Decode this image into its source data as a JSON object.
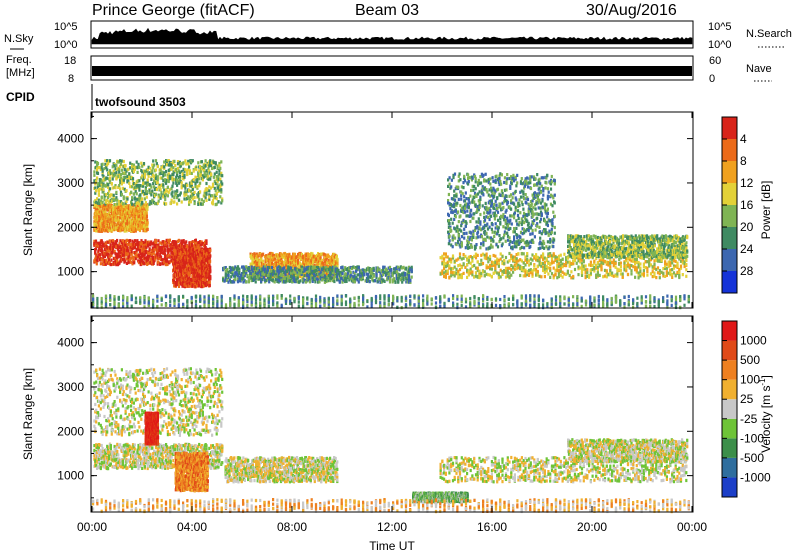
{
  "header": {
    "station": "Prince George (fitACF)",
    "beam": "Beam 03",
    "date": "30/Aug/2016"
  },
  "side_labels": {
    "nsky": "N.Sky",
    "freq": "Freq.",
    "mhz": "[MHz]",
    "cpid": "CPID",
    "nsearch": "N.Search",
    "nave": "Nave"
  },
  "cpid_text": "twofsound 3503",
  "noise_ticks": {
    "left_top": "10^5",
    "left_bottom": "10^0",
    "right_top": "10^5",
    "right_bottom": "10^0"
  },
  "freq_ticks": {
    "left_top": "18",
    "left_bottom": "8",
    "right_top": "60",
    "right_bottom": "0"
  },
  "chart_data": [
    {
      "type": "heatmap",
      "title": "",
      "xlabel": "",
      "ylabel": "Slant Range [km]",
      "x_range": [
        "00:00",
        "24:00"
      ],
      "ylim": [
        180,
        4600
      ],
      "yticks": [
        "1000",
        "2000",
        "3000",
        "4000"
      ],
      "colorbar": {
        "label": "Power [dB]",
        "ticks": [
          "4",
          "8",
          "12",
          "16",
          "20",
          "24",
          "28"
        ],
        "colors": [
          "#1533d8",
          "#3c67b0",
          "#3f8a62",
          "#7fb454",
          "#e3d138",
          "#f0a11f",
          "#eb6a19",
          "#d8241a"
        ]
      },
      "echo_bands": [
        {
          "t0": 0.05,
          "t1": 4.6,
          "r0": 1150,
          "r1": 1700,
          "level": 7
        },
        {
          "t0": 0.05,
          "t1": 2.2,
          "r0": 1900,
          "r1": 2500,
          "level": 5
        },
        {
          "t0": 0.05,
          "t1": 5.2,
          "r0": 2500,
          "r1": 3500,
          "level": 3
        },
        {
          "t0": 3.2,
          "t1": 4.7,
          "r0": 650,
          "r1": 1500,
          "level": 7
        },
        {
          "t0": 6.3,
          "t1": 9.8,
          "r0": 850,
          "r1": 1400,
          "level": 5
        },
        {
          "t0": 5.2,
          "t1": 12.8,
          "r0": 750,
          "r1": 1100,
          "level": 2
        },
        {
          "t0": 13.9,
          "t1": 23.8,
          "r0": 850,
          "r1": 1400,
          "level": 4
        },
        {
          "t0": 19.0,
          "t1": 23.8,
          "r0": 1300,
          "r1": 1800,
          "level": 3
        },
        {
          "t0": 14.2,
          "t1": 18.5,
          "r0": 1500,
          "r1": 3200,
          "level": 2
        },
        {
          "t0": 0.0,
          "t1": 24.0,
          "r0": 180,
          "r1": 450,
          "level": 2
        }
      ]
    },
    {
      "type": "heatmap",
      "title": "",
      "xlabel": "Time UT",
      "ylabel": "Slant Range [km]",
      "x_range": [
        "00:00",
        "24:00"
      ],
      "ylim": [
        180,
        4600
      ],
      "yticks": [
        "1000",
        "2000",
        "3000",
        "4000"
      ],
      "xticks": [
        "00:00",
        "04:00",
        "08:00",
        "12:00",
        "16:00",
        "20:00",
        "00:00"
      ],
      "colorbar": {
        "label": "Velocity [m s^-1]",
        "ticks": [
          "1000",
          "500",
          "100",
          "25",
          "-25",
          "-100",
          "-500",
          "-1000"
        ],
        "colors": [
          "#1c3fc8",
          "#2f6e9e",
          "#3c8f4a",
          "#6ec437",
          "#c8c8c8",
          "#f0b030",
          "#ee8020",
          "#e04a18",
          "#e01818"
        ]
      },
      "echo_bands": [
        {
          "t0": 0.05,
          "t1": 5.2,
          "r0": 1150,
          "r1": 1700,
          "level": 4
        },
        {
          "t0": 0.05,
          "t1": 5.2,
          "r0": 1900,
          "r1": 3400,
          "level": 4
        },
        {
          "t0": 2.1,
          "t1": 2.6,
          "r0": 1700,
          "r1": 2400,
          "level": 8
        },
        {
          "t0": 3.3,
          "t1": 4.6,
          "r0": 650,
          "r1": 1500,
          "level": 6
        },
        {
          "t0": 5.3,
          "t1": 9.8,
          "r0": 850,
          "r1": 1400,
          "level": 4
        },
        {
          "t0": 13.9,
          "t1": 23.8,
          "r0": 850,
          "r1": 1400,
          "level": 4
        },
        {
          "t0": 19.0,
          "t1": 23.8,
          "r0": 1300,
          "r1": 1800,
          "level": 4
        },
        {
          "t0": 12.8,
          "t1": 15.0,
          "r0": 400,
          "r1": 600,
          "level": 3
        },
        {
          "t0": 0.0,
          "t1": 24.0,
          "r0": 180,
          "r1": 450,
          "level": 5
        }
      ]
    }
  ]
}
